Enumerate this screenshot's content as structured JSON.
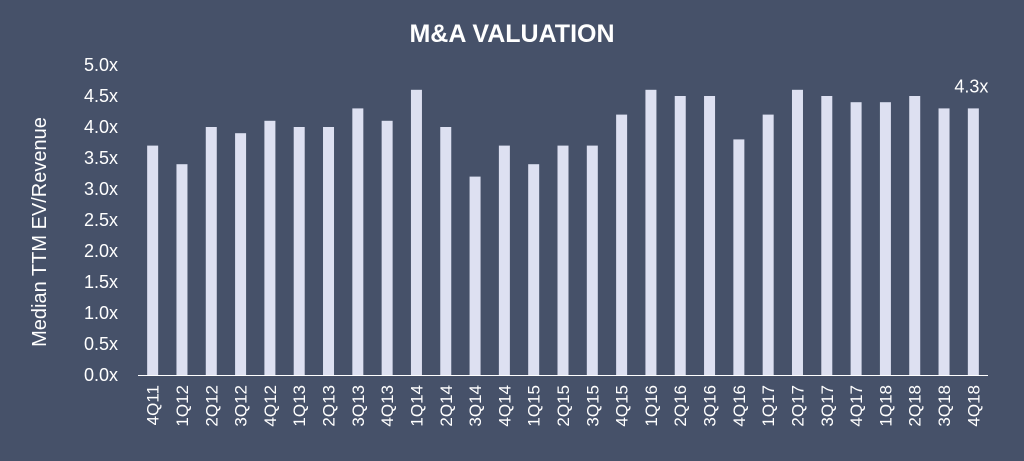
{
  "chart_data": {
    "type": "bar",
    "title": "M&A VALUATION",
    "ylabel": "Median TTM EV/Revenue",
    "xlabel": "",
    "ylim": [
      0,
      5
    ],
    "yticks": [
      "0.0x",
      "0.5x",
      "1.0x",
      "1.5x",
      "2.0x",
      "2.5x",
      "3.0x",
      "3.5x",
      "4.0x",
      "4.5x",
      "5.0x"
    ],
    "categories": [
      "4Q11",
      "1Q12",
      "2Q12",
      "3Q12",
      "4Q12",
      "1Q13",
      "2Q13",
      "3Q13",
      "4Q13",
      "1Q14",
      "2Q14",
      "3Q14",
      "4Q14",
      "1Q15",
      "2Q15",
      "3Q15",
      "4Q15",
      "1Q16",
      "2Q16",
      "3Q16",
      "4Q16",
      "1Q17",
      "2Q17",
      "3Q17",
      "4Q17",
      "1Q18",
      "2Q18",
      "3Q18",
      "4Q18"
    ],
    "values": [
      3.7,
      3.4,
      4.0,
      3.9,
      4.1,
      4.0,
      4.0,
      4.3,
      4.1,
      4.6,
      4.0,
      3.2,
      3.7,
      3.4,
      3.7,
      3.7,
      4.2,
      4.6,
      4.5,
      4.5,
      3.8,
      4.2,
      4.6,
      4.5,
      4.4,
      4.4,
      4.5,
      4.3,
      4.3
    ],
    "data_label": {
      "category": "4Q18",
      "text": "4.3x"
    },
    "grid": false,
    "legend": "none",
    "colors": {
      "background": "#465169",
      "bar": "#dde0f1",
      "text": "#ffffff",
      "axis": "#ffffff"
    }
  }
}
